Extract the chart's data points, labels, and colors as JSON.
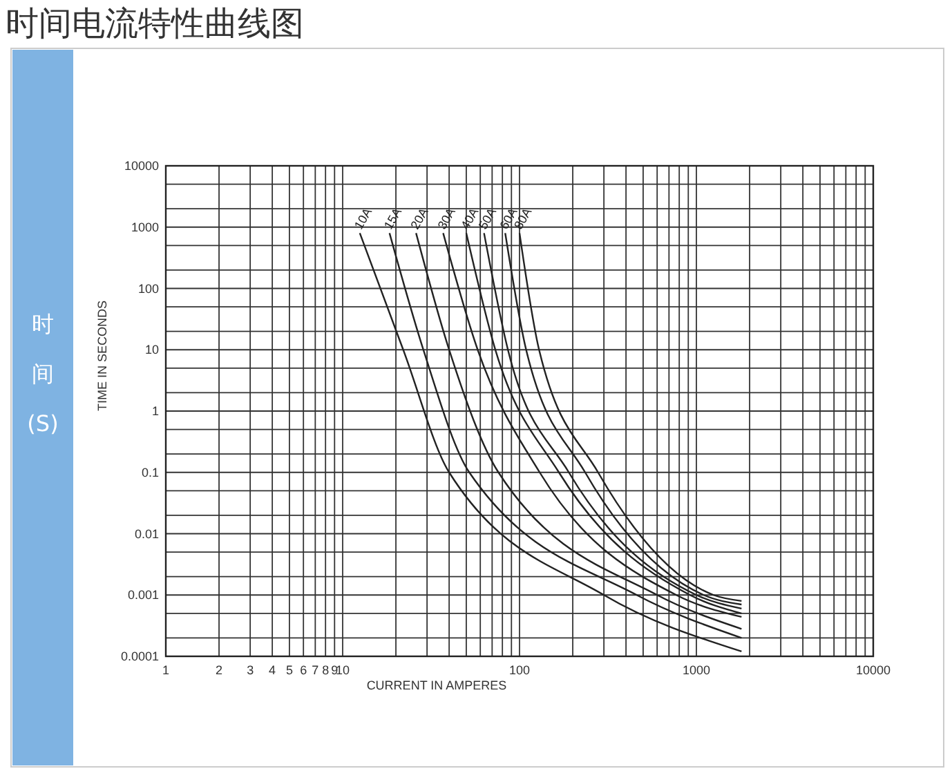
{
  "chart_data": {
    "type": "line",
    "title": "时间电流特性曲线图",
    "xlabel": "CURRENT IN AMPERES",
    "ylabel": "TIME IN SECONDS",
    "annotations": [
      "时间(S)"
    ],
    "log": "xy",
    "grid": true,
    "marker": "none",
    "line_style": "solid",
    "xlim": [
      1,
      10000
    ],
    "ylim": [
      0.0001,
      10000
    ],
    "xticks": [
      1,
      2,
      3,
      4,
      5,
      6,
      7,
      8,
      9,
      10,
      {
        "value": 20,
        "label": null
      },
      {
        "value": 30,
        "label": null
      },
      {
        "value": 40,
        "label": null
      },
      {
        "value": 50,
        "label": null
      },
      {
        "value": 60,
        "label": null
      },
      {
        "value": 70,
        "label": null
      },
      {
        "value": 80,
        "label": null
      },
      {
        "value": 90,
        "label": null
      },
      100,
      {
        "value": 200,
        "label": null
      },
      {
        "value": 300,
        "label": null
      },
      {
        "value": 400,
        "label": null
      },
      {
        "value": 500,
        "label": null
      },
      {
        "value": 600,
        "label": null
      },
      {
        "value": 700,
        "label": null
      },
      {
        "value": 800,
        "label": null
      },
      {
        "value": 900,
        "label": null
      },
      1000,
      {
        "value": 2000,
        "label": null
      },
      {
        "value": 3000,
        "label": null
      },
      {
        "value": 4000,
        "label": null
      },
      {
        "value": 5000,
        "label": null
      },
      {
        "value": 6000,
        "label": null
      },
      {
        "value": 7000,
        "label": null
      },
      {
        "value": 8000,
        "label": null
      },
      {
        "value": 9000,
        "label": null
      },
      10000
    ],
    "yticks": [
      0.0001,
      {
        "value": 0.0002,
        "label": null
      },
      {
        "value": 0.0005,
        "label": null
      },
      0.001,
      {
        "value": 0.002,
        "label": null
      },
      {
        "value": 0.005,
        "label": null
      },
      0.01,
      {
        "value": 0.02,
        "label": null
      },
      {
        "value": 0.05,
        "label": null
      },
      0.1,
      {
        "value": 0.2,
        "label": null
      },
      {
        "value": 0.5,
        "label": null
      },
      1,
      {
        "value": 2,
        "label": null
      },
      {
        "value": 5,
        "label": null
      },
      10,
      {
        "value": 20,
        "label": null
      },
      {
        "value": 50,
        "label": null
      },
      100,
      {
        "value": 200,
        "label": null
      },
      {
        "value": 500,
        "label": null
      },
      1000,
      {
        "value": 2000,
        "label": null
      },
      {
        "value": 5000,
        "label": null
      },
      10000
    ],
    "series": [
      {
        "name": "10A",
        "color": "#222222",
        "x": [
          12.5,
          22,
          40,
          300,
          1800
        ],
        "values": [
          800,
          10,
          0.1,
          0.001,
          0.00012
        ]
      },
      {
        "name": "15A",
        "color": "#222222",
        "x": [
          18.4,
          28.6,
          52,
          460,
          1800
        ],
        "values": [
          800,
          10,
          0.1,
          0.001,
          0.0002
        ]
      },
      {
        "name": "20A",
        "color": "#222222",
        "x": [
          26,
          40,
          76,
          600,
          1800
        ],
        "values": [
          800,
          10,
          0.1,
          0.001,
          0.00028
        ]
      },
      {
        "name": "30A",
        "color": "#222222",
        "x": [
          37,
          58,
          130,
          770,
          1800
        ],
        "values": [
          800,
          10,
          0.1,
          0.001,
          0.00044
        ]
      },
      {
        "name": "40A",
        "color": "#222222",
        "x": [
          50,
          73,
          167,
          920,
          1800
        ],
        "values": [
          800,
          10,
          0.1,
          0.001,
          0.0005
        ]
      },
      {
        "name": "50A",
        "color": "#222222",
        "x": [
          63,
          86,
          190,
          1000,
          1800
        ],
        "values": [
          800,
          10,
          0.1,
          0.001,
          0.0006
        ]
      },
      {
        "name": "60A",
        "color": "#222222",
        "x": [
          83,
          109,
          235,
          1100,
          1800
        ],
        "values": [
          800,
          10,
          0.1,
          0.001,
          0.0007
        ]
      },
      {
        "name": "80A",
        "color": "#222222",
        "x": [
          100,
          129,
          278,
          1250,
          1800
        ],
        "values": [
          800,
          10,
          0.1,
          0.001,
          0.0008
        ]
      }
    ]
  }
}
